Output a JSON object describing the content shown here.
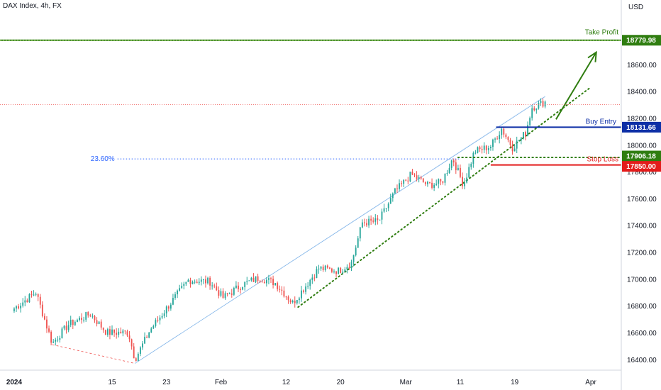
{
  "header": {
    "title": "DAX Index, 4h, FX",
    "currency": "USD"
  },
  "colors": {
    "up": "#26a69a",
    "down": "#ef5350",
    "green": "#2f7d10",
    "blue": "#0d2fa6",
    "red": "#e31b1b",
    "channel": "#7fb3e8",
    "fib": "#2962ff"
  },
  "annotations": {
    "take_profit": {
      "label": "Take Profit",
      "price": "18779.98"
    },
    "buy_entry": {
      "label": "Buy Entry",
      "price": "18131.66"
    },
    "stop_loss": {
      "label": "Stop Loss",
      "price": "17850.00"
    },
    "support": {
      "price": "17906.18"
    },
    "fib": {
      "label": "23.60%"
    }
  },
  "chart_data": {
    "type": "candlestick",
    "instrument": "DAX Index",
    "timeframe": "4h",
    "ylim": [
      16320,
      19080
    ],
    "y_ticks": [
      16400,
      16600,
      16800,
      17000,
      17200,
      17400,
      17600,
      17800,
      18000,
      18200,
      18400,
      18600
    ],
    "y_tick_labels": [
      "16400.00",
      "16600.00",
      "16800.00",
      "17000.00",
      "17200.00",
      "17400.00",
      "17600.00",
      "17800.00",
      "18000.00",
      "18200.00",
      "18400.00",
      "18600.00"
    ],
    "x_ticks": [
      {
        "label": "2024",
        "bold": true,
        "x": 0
      },
      {
        "label": "15",
        "x": 9
      },
      {
        "label": "23",
        "x": 14
      },
      {
        "label": "Feb",
        "x": 19
      },
      {
        "label": "12",
        "x": 25
      },
      {
        "label": "20",
        "x": 30
      },
      {
        "label": "Mar",
        "x": 36
      },
      {
        "label": "11",
        "x": 41
      },
      {
        "label": "19",
        "x": 46
      },
      {
        "label": "Apr",
        "x": 53
      }
    ],
    "xlim": [
      -1.3,
      55.8
    ],
    "key_points": [
      {
        "x": 0,
        "y": 16780
      },
      {
        "x": 2,
        "y": 16900
      },
      {
        "x": 3.5,
        "y": 16520
      },
      {
        "x": 5,
        "y": 16660
      },
      {
        "x": 7,
        "y": 16740
      },
      {
        "x": 8.5,
        "y": 16600
      },
      {
        "x": 10.5,
        "y": 16600
      },
      {
        "x": 11.1,
        "y": 16400
      },
      {
        "x": 12.5,
        "y": 16620
      },
      {
        "x": 14,
        "y": 16780
      },
      {
        "x": 16,
        "y": 16990
      },
      {
        "x": 18,
        "y": 16980
      },
      {
        "x": 19.2,
        "y": 16860
      },
      {
        "x": 21,
        "y": 16960
      },
      {
        "x": 22.5,
        "y": 17010
      },
      {
        "x": 24,
        "y": 16970
      },
      {
        "x": 25.6,
        "y": 16820
      },
      {
        "x": 28,
        "y": 17080
      },
      {
        "x": 29.8,
        "y": 17060
      },
      {
        "x": 31,
        "y": 17120
      },
      {
        "x": 32,
        "y": 17420
      },
      {
        "x": 33.5,
        "y": 17430
      },
      {
        "x": 35,
        "y": 17650
      },
      {
        "x": 36.5,
        "y": 17780
      },
      {
        "x": 38,
        "y": 17700
      },
      {
        "x": 39.3,
        "y": 17720
      },
      {
        "x": 40.3,
        "y": 17900
      },
      {
        "x": 41.3,
        "y": 17700
      },
      {
        "x": 42.3,
        "y": 17950
      },
      {
        "x": 43.8,
        "y": 17990
      },
      {
        "x": 44.8,
        "y": 18120
      },
      {
        "x": 45.8,
        "y": 17980
      },
      {
        "x": 47,
        "y": 18090
      },
      {
        "x": 47.6,
        "y": 18280
      },
      {
        "x": 48.8,
        "y": 18320
      }
    ],
    "last_price": 18300,
    "levels": {
      "take_profit": 18779.98,
      "buy_entry": 18131.66,
      "support": 17906.18,
      "stop_loss": 17850.0,
      "fib_23_6": 17895
    },
    "drawings": {
      "channel_upper": [
        {
          "x": 11.1,
          "y": 16370
        },
        {
          "x": 48.8,
          "y": 18360
        }
      ],
      "channel_lower": [
        {
          "x": 11.1,
          "y": 16370
        },
        {
          "x": 48.8,
          "y": 18370
        }
      ],
      "support_trendline": [
        {
          "x": 26.1,
          "y": 16790
        },
        {
          "x": 53.0,
          "y": 18430
        }
      ],
      "dashed_low_link": [
        {
          "x": 3.5,
          "y": 16510
        },
        {
          "x": 11.1,
          "y": 16370
        }
      ],
      "arrow": [
        {
          "x": 49.8,
          "y": 18190
        },
        {
          "x": 53.5,
          "y": 18690
        }
      ]
    }
  }
}
